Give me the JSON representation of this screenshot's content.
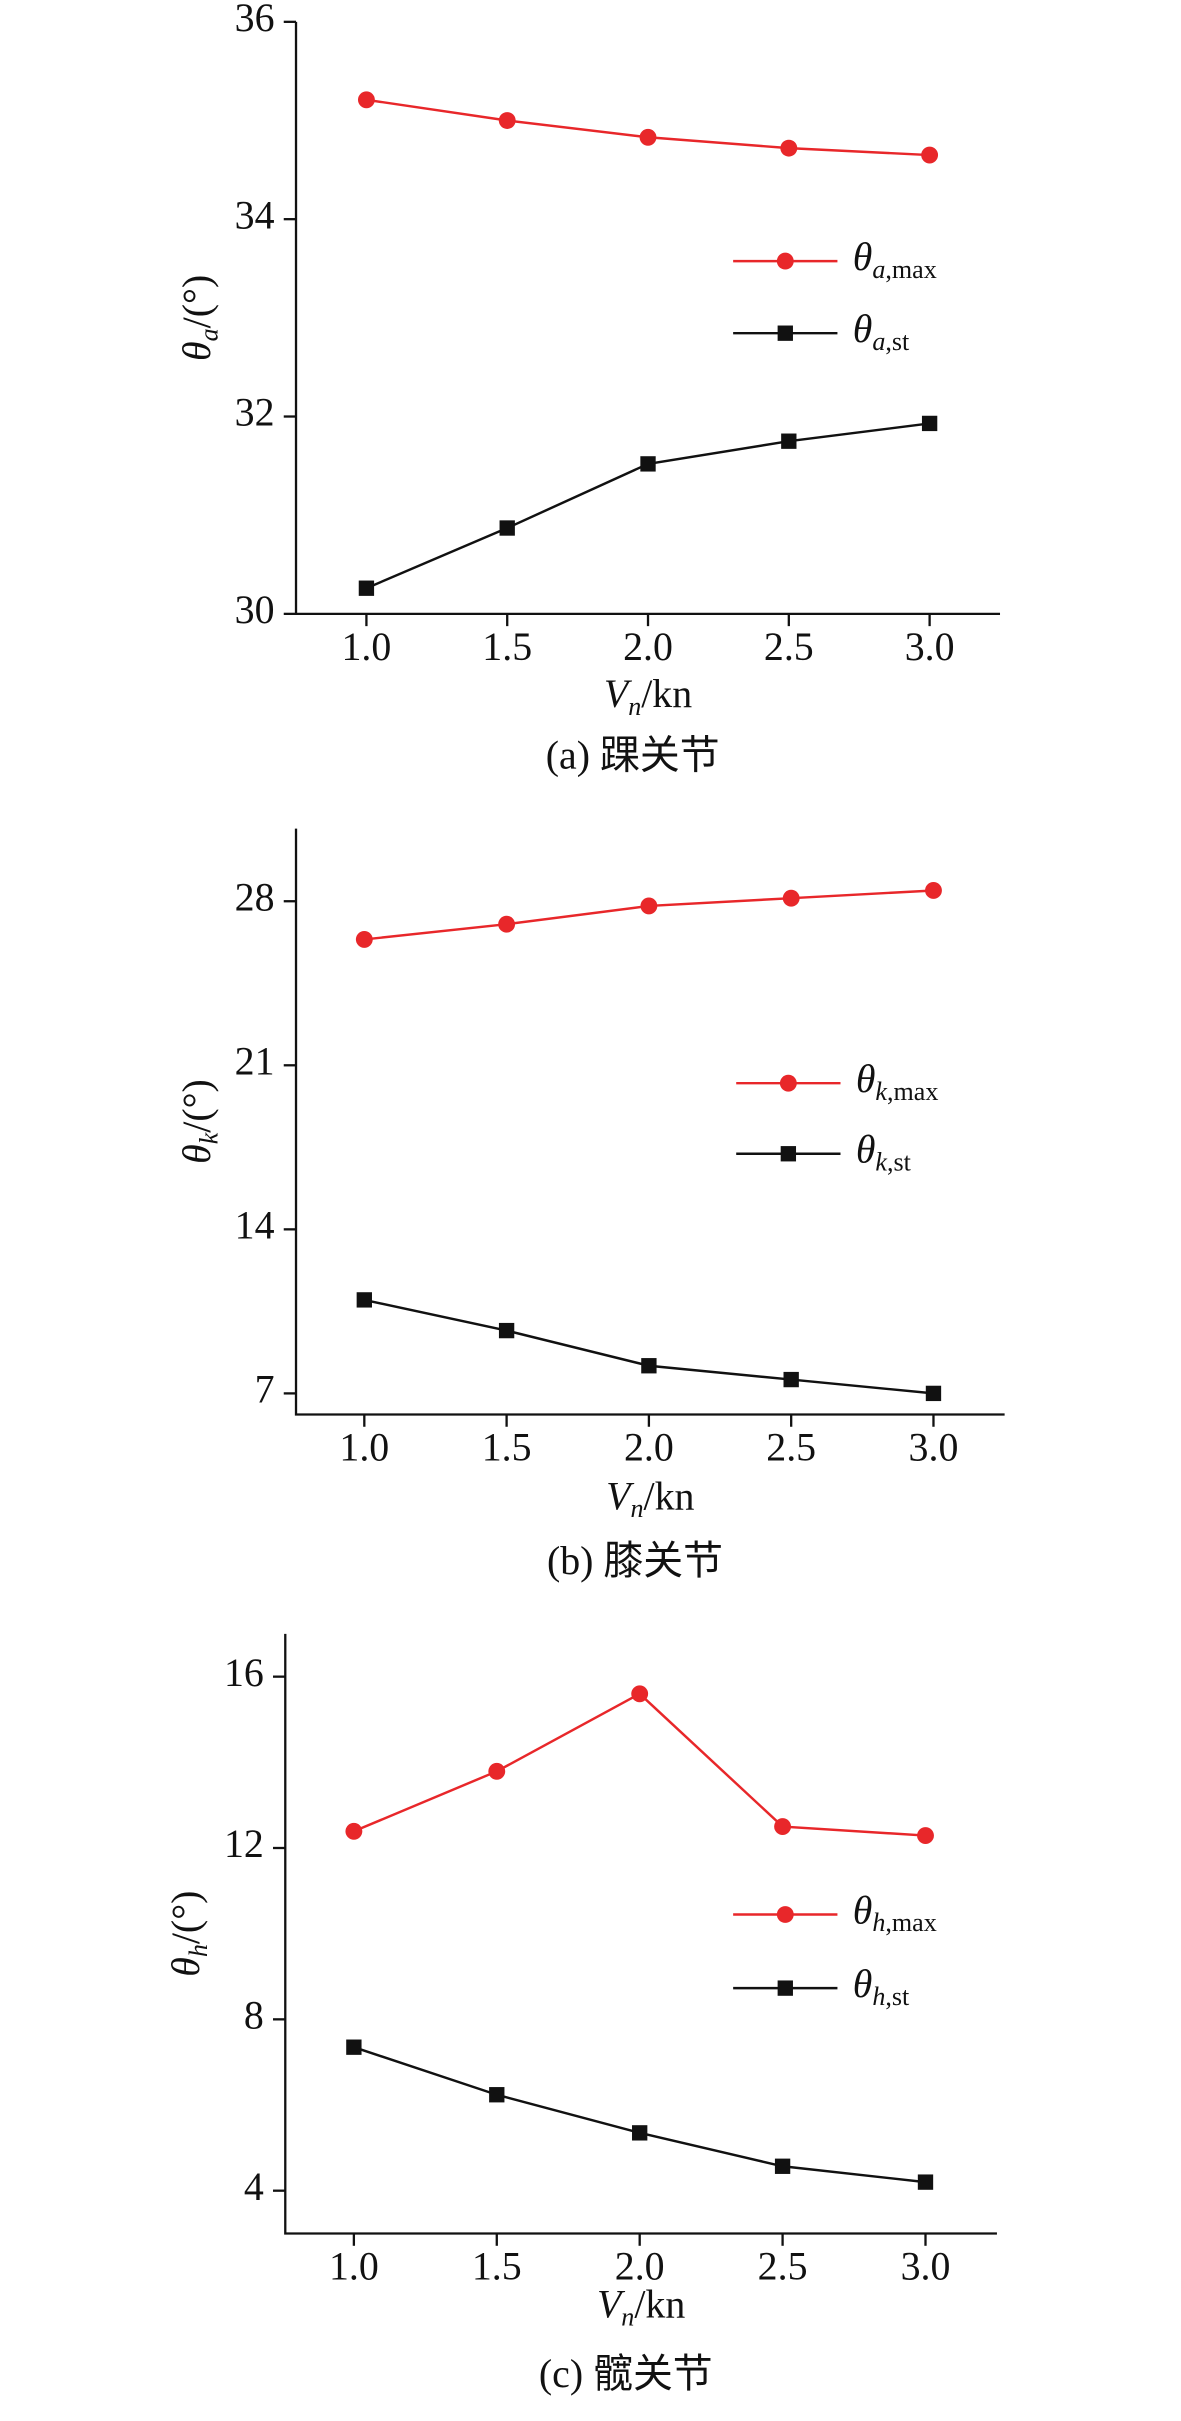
{
  "chart_data": [
    {
      "type": "line",
      "ylabel": "θa/(°)",
      "xlabel": "Vn/kn",
      "caption": "(a) 踝关节",
      "x": [
        1.0,
        1.5,
        2.0,
        2.5,
        3.0
      ],
      "xlim": [
        0.75,
        3.25
      ],
      "xticks": [
        {
          "value": 1.0,
          "label": "1.0"
        },
        {
          "value": 1.5,
          "label": "1.5"
        },
        {
          "value": 2.0,
          "label": "2.0"
        },
        {
          "value": 2.5,
          "label": "2.5"
        },
        {
          "value": 3.0,
          "label": "3.0"
        }
      ],
      "ylim": [
        30,
        36
      ],
      "yticks": [
        30,
        32,
        34,
        36
      ],
      "series": [
        {
          "name": "θa,max",
          "color": "#e8272a",
          "marker": "circle",
          "values": [
            35.21,
            35.0,
            34.83,
            34.72,
            34.65
          ]
        },
        {
          "name": "θa,st",
          "color": "#111111",
          "marker": "square",
          "values": [
            30.26,
            30.87,
            31.52,
            31.75,
            31.93
          ]
        }
      ]
    },
    {
      "type": "line",
      "ylabel": "θk/(°)",
      "xlabel": "Vn/kn",
      "caption": "(b) 膝关节",
      "x": [
        1.0,
        1.5,
        2.0,
        2.5,
        3.0
      ],
      "xlim": [
        0.76,
        3.25
      ],
      "xticks": [
        {
          "value": 1.0,
          "label": "1.0"
        },
        {
          "value": 1.5,
          "label": "1.5"
        },
        {
          "value": 2.0,
          "label": "2.0"
        },
        {
          "value": 2.5,
          "label": "2.5"
        },
        {
          "value": 3.0,
          "label": "3.0"
        }
      ],
      "ylim": [
        6.1,
        31.1
      ],
      "yticks": [
        7,
        14,
        21,
        28
      ],
      "series": [
        {
          "name": "θk,max",
          "color": "#e8272a",
          "marker": "circle",
          "values": [
            26.37,
            27.02,
            27.8,
            28.13,
            28.46
          ]
        },
        {
          "name": "θk,st",
          "color": "#111111",
          "marker": "square",
          "values": [
            10.99,
            9.68,
            8.18,
            7.59,
            7.0
          ]
        }
      ]
    },
    {
      "type": "line",
      "ylabel": "θh/(°)",
      "xlabel": "Vn/kn",
      "caption": "(c) 髋关节",
      "x": [
        1.0,
        1.5,
        2.0,
        2.5,
        3.0
      ],
      "xlim": [
        0.76,
        3.25
      ],
      "xticks": [
        {
          "value": 1.0,
          "label": "1.0"
        },
        {
          "value": 1.5,
          "label": "1.5"
        },
        {
          "value": 2.0,
          "label": "2.0"
        },
        {
          "value": 2.5,
          "label": "2.5"
        },
        {
          "value": 3.0,
          "label": "3.0"
        }
      ],
      "ylim": [
        3,
        17
      ],
      "yticks": [
        4,
        8,
        12,
        16
      ],
      "series": [
        {
          "name": "θh,max",
          "color": "#e8272a",
          "marker": "circle",
          "values": [
            12.39,
            13.79,
            15.6,
            12.5,
            12.29
          ]
        },
        {
          "name": "θh,st",
          "color": "#111111",
          "marker": "square",
          "values": [
            7.35,
            6.24,
            5.35,
            4.57,
            4.2
          ]
        }
      ]
    }
  ]
}
